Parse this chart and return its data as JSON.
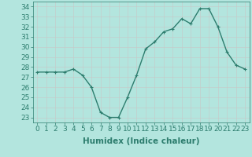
{
  "x": [
    0,
    1,
    2,
    3,
    4,
    5,
    6,
    7,
    8,
    9,
    10,
    11,
    12,
    13,
    14,
    15,
    16,
    17,
    18,
    19,
    20,
    21,
    22,
    23
  ],
  "y": [
    27.5,
    27.5,
    27.5,
    27.5,
    27.8,
    27.2,
    26.0,
    23.5,
    23.0,
    23.0,
    25.0,
    27.2,
    29.8,
    30.5,
    31.5,
    31.8,
    32.8,
    32.3,
    33.8,
    33.8,
    32.0,
    29.5,
    28.2,
    27.8
  ],
  "line_color": "#2d7d6e",
  "marker": "+",
  "markersize": 3,
  "linewidth": 1.0,
  "xlabel": "Humidex (Indice chaleur)",
  "ylabel_ticks": [
    23,
    24,
    25,
    26,
    27,
    28,
    29,
    30,
    31,
    32,
    33,
    34
  ],
  "xlim": [
    -0.5,
    23.5
  ],
  "ylim": [
    22.5,
    34.5
  ],
  "bg_color": "#b3e5de",
  "grid_color": "#c8c8c8",
  "xlabel_fontsize": 7.5,
  "tick_fontsize": 6.5
}
